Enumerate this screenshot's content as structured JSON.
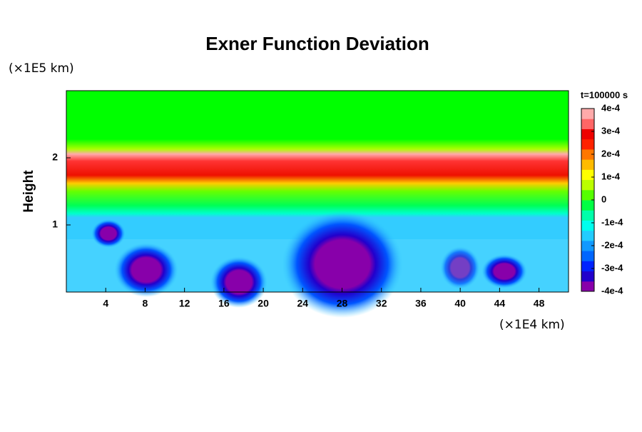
{
  "chart_data": {
    "type": "contour",
    "title": "Exner Function Deviation",
    "y_unit": "(×1E5 km)",
    "y_label": "Height",
    "x_unit": "(×1E4 km)",
    "colorbar_title": "t=100000 s",
    "xlim": [
      0,
      51
    ],
    "xticks": [
      4,
      8,
      12,
      16,
      20,
      24,
      28,
      32,
      36,
      40,
      44,
      48
    ],
    "ylim": [
      0,
      3
    ],
    "yticks": [
      1,
      2
    ],
    "clim": [
      -0.0004,
      0.0004
    ],
    "cticks": [
      {
        "value": 0.0004,
        "label": "4e-4"
      },
      {
        "value": 0.0003,
        "label": "3e-4"
      },
      {
        "value": 0.0002,
        "label": "2e-4"
      },
      {
        "value": 0.0001,
        "label": "1e-4"
      },
      0,
      {
        "value": -0.0001,
        "label": "-1e-4"
      },
      {
        "value": -0.0002,
        "label": "-2e-4"
      },
      {
        "value": -0.0003,
        "label": "-3e-4"
      },
      {
        "value": -0.0004,
        "label": "-4e-4"
      }
    ],
    "colors": [
      "#8800aa",
      "#2200cc",
      "#0022ff",
      "#0066ff",
      "#1199ff",
      "#22ccff",
      "#00ffee",
      "#00ffaa",
      "#00ff44",
      "#55ff00",
      "#bbff00",
      "#ffff00",
      "#ffbb00",
      "#ff7700",
      "#ff2200",
      "#ee0000",
      "#ff6666",
      "#ffaaaa"
    ]
  }
}
